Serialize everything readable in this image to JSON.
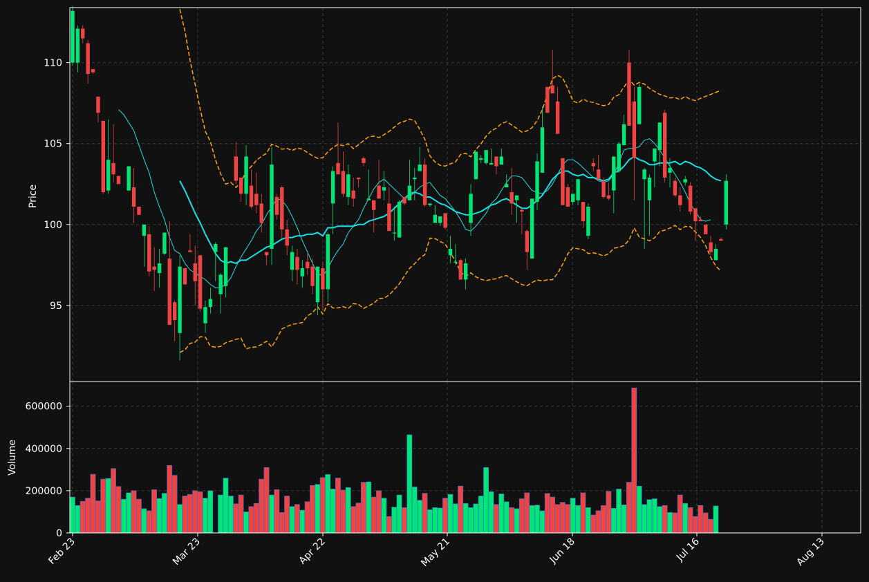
{
  "chart_data": [
    {
      "type": "candlestick",
      "ylabel": "Price",
      "ylim": [
        90.3,
        113.4
      ],
      "yticks": [
        95,
        100,
        105,
        110
      ],
      "xticks": [
        "Feb 23",
        "Mar 23",
        "Apr 22",
        "May 21",
        "Jun 18",
        "Jul 16",
        "Aug 13"
      ],
      "grid": true,
      "colors": {
        "up": "#00e676",
        "down": "#ef4444",
        "ma_fast": "#18dfe5",
        "ma_slow": "#18dfe5",
        "bands": "#ffa500",
        "background": "#111111",
        "grid": "#3a3a3a"
      },
      "ohlc": [
        [
          110,
          113.5,
          109.8,
          113.2
        ],
        [
          110,
          112.3,
          109.4,
          112.1
        ],
        [
          112.1,
          112.3,
          111.2,
          111.5
        ],
        [
          111.2,
          111.4,
          108.7,
          109.3
        ],
        [
          109.6,
          109.5,
          109.3,
          109.4
        ],
        [
          107.9,
          106.6,
          106.3,
          106.9
        ],
        [
          106.4,
          105.2,
          101.9,
          102
        ],
        [
          102.1,
          106.5,
          101.9,
          104
        ],
        [
          103.8,
          106.2,
          102.6,
          103.1
        ],
        [
          103,
          102.5,
          102.5,
          102.5
        ],
        [
          null,
          null,
          null,
          null
        ],
        [
          102.1,
          102.2,
          102.5,
          103.6
        ],
        [
          102.3,
          103.5,
          100.1,
          101.1
        ],
        [
          101.1,
          100.8,
          101.3,
          100.6
        ],
        [
          99.3,
          99.5,
          97.4,
          100
        ],
        [
          99.4,
          99.9,
          96.8,
          97.1
        ],
        [
          97.4,
          98.6,
          95.9,
          97.2
        ],
        [
          97,
          98.5,
          96.1,
          97.6
        ],
        [
          98.2,
          99.5,
          98.1,
          99.5
        ],
        [
          97.9,
          100.2,
          93.9,
          93.8
        ],
        [
          95.2,
          95.3,
          92.8,
          94.1
        ],
        [
          93.3,
          98.1,
          91.6,
          97.4
        ],
        [
          97.3,
          96.5,
          96.4,
          96.3
        ],
        [
          98.4,
          99.4,
          98.3,
          98.3
        ],
        [
          97.6,
          98.7,
          95,
          96.5
        ],
        [
          98.1,
          95.8,
          94.6,
          94.8
        ],
        [
          93.9,
          95.3,
          93.3,
          94.9
        ],
        [
          94.9,
          96.1,
          94.5,
          95.4
        ],
        [
          98.3,
          98.9,
          96.5,
          98.8
        ],
        [
          95.7,
          97,
          94.5,
          96.9
        ],
        [
          96.2,
          97.1,
          95.5,
          98.6
        ],
        [
          null,
          null,
          null,
          null
        ],
        [
          104.2,
          105.1,
          102.5,
          102.7
        ],
        [
          102.9,
          102.5,
          101.4,
          101.9
        ],
        [
          101.9,
          104.9,
          101.2,
          104.2
        ],
        [
          102.4,
          103.4,
          101,
          101.1
        ],
        [
          101.9,
          103.2,
          100.7,
          101.2
        ],
        [
          101.3,
          101.9,
          99.5,
          100.1
        ],
        [
          98.3,
          98.2,
          97.5,
          98.1
        ],
        [
          98.5,
          104.8,
          97.5,
          103.7
        ],
        [
          101.7,
          101.9,
          100.3,
          100.6
        ],
        [
          102.3,
          102.4,
          99.2,
          99.7
        ],
        [
          99.7,
          100.3,
          98.1,
          98.7
        ],
        [
          97.2,
          98.7,
          96.5,
          98.3
        ],
        [
          98,
          98.5,
          96.3,
          97.2
        ],
        [
          96.8,
          97.8,
          96.1,
          97.3
        ],
        [
          97.7,
          98.2,
          96.9,
          97.3
        ],
        [
          97.4,
          97.9,
          95.7,
          96.2
        ],
        [
          95.2,
          97.3,
          94.4,
          97.4
        ],
        [
          97.3,
          97.7,
          94.7,
          96
        ],
        [
          96,
          99.5,
          95.2,
          99.4
        ],
        [
          101.3,
          103.6,
          99.4,
          103.3
        ],
        [
          103.8,
          106.3,
          103.4,
          103.1
        ],
        [
          103.3,
          104.5,
          101.7,
          101.9
        ],
        [
          101.7,
          103.7,
          101.2,
          103.1
        ],
        [
          102.1,
          102.9,
          101.1,
          101.6
        ],
        [
          102.9,
          102.6,
          102.3,
          102.8
        ],
        [
          104.1,
          104.2,
          103.6,
          103.8
        ],
        [
          101.5,
          103.4,
          101.7,
          101.6
        ],
        [
          101.5,
          101.5,
          99.5,
          100.9
        ],
        [
          102.4,
          104,
          102.1,
          101.6
        ],
        [
          102.1,
          103.3,
          101.5,
          102.3
        ],
        [
          101.3,
          102.3,
          99.9,
          99.6
        ],
        [
          99.5,
          101.1,
          99,
          99.5
        ],
        [
          99.2,
          101.5,
          99.6,
          101.4
        ],
        [
          101.7,
          101.3,
          101.2,
          101.3
        ],
        [
          101.5,
          104,
          102,
          102.4
        ],
        [
          102.8,
          103.5,
          101.5,
          102.9
        ],
        [
          103.3,
          104.8,
          103.4,
          103.7
        ],
        [
          103.7,
          104.1,
          101.1,
          101.2
        ],
        [
          101.2,
          101.3,
          101.1,
          101.3
        ],
        [
          100.1,
          101.2,
          100.4,
          100.6
        ],
        [
          100.1,
          100.5,
          99.9,
          100.5
        ],
        [
          100.7,
          99.7,
          99.7,
          99.8
        ],
        [
          98.1,
          99.3,
          97.6,
          98.5
        ],
        [
          97.7,
          98.8,
          97.5,
          97.7
        ],
        [
          97.8,
          97.9,
          96.6,
          96.6
        ],
        [
          96.6,
          97.9,
          96,
          97.6
        ],
        [
          100.1,
          102.5,
          99.3,
          101.9
        ],
        [
          102.8,
          104.5,
          102.9,
          104.5
        ],
        [
          104,
          104.3,
          103.8,
          104.1
        ],
        [
          103.8,
          104.1,
          103.7,
          104.6
        ],
        [
          103.7,
          104.7,
          103.7,
          103.8
        ],
        [
          104.2,
          104.1,
          103.1,
          103.6
        ],
        [
          103.7,
          104.7,
          103.8,
          104.2
        ],
        [
          102.3,
          103.1,
          102.3,
          102.5
        ],
        [
          102,
          103.5,
          100.6,
          101.3
        ],
        [
          101.5,
          101.8,
          100.1,
          101.8
        ],
        [
          100.9,
          101.1,
          99.4,
          100.8
        ],
        [
          99.6,
          99.7,
          97.2,
          98.3
        ],
        [
          97.9,
          101.4,
          98.1,
          101.6
        ],
        [
          101.4,
          104.4,
          100.9,
          103.9
        ],
        [
          103.2,
          107.3,
          103.2,
          106
        ],
        [
          108.5,
          108.4,
          106.9,
          106.9
        ],
        [
          108.6,
          110.8,
          108.4,
          108.1
        ],
        [
          107.6,
          108.5,
          105.6,
          105.6
        ],
        [
          104.1,
          103.8,
          101.2,
          101.2
        ],
        [
          102.3,
          102.5,
          101.7,
          101.1
        ],
        [
          101.4,
          101.8,
          101.2,
          101.9
        ],
        [
          101.5,
          102.6,
          101.2,
          102.8
        ],
        [
          101.4,
          101.3,
          99.8,
          100.2
        ],
        [
          99.3,
          101.3,
          99.1,
          101.1
        ],
        [
          103.8,
          104.1,
          103.3,
          103.6
        ],
        [
          103.4,
          104.3,
          102.7,
          102.8
        ],
        [
          102.7,
          102.9,
          101.6,
          101.7
        ],
        [
          101.8,
          102.6,
          101.5,
          101.6
        ],
        [
          102.1,
          104.1,
          100.7,
          104.2
        ],
        [
          103.3,
          105.1,
          103.2,
          105
        ],
        [
          104.9,
          106.8,
          104.9,
          106.2
        ],
        [
          110,
          110.8,
          109.1,
          106.1
        ],
        [
          107.6,
          108.5,
          101.5,
          104.1
        ],
        [
          106.2,
          108.7,
          106.5,
          108.5
        ],
        [
          102.8,
          103.5,
          98.5,
          103.4
        ],
        [
          101.5,
          103.1,
          99.3,
          102.9
        ],
        [
          103.9,
          104.6,
          102.3,
          104.7
        ],
        [
          104.6,
          105.4,
          103.6,
          106.3
        ],
        [
          106.9,
          107.1,
          102.6,
          102.9
        ],
        [
          103.2,
          104.1,
          102.3,
          103.5
        ],
        [
          102.7,
          102.9,
          101.7,
          101.8
        ],
        [
          101.8,
          102.3,
          100.8,
          101.2
        ],
        [
          102.6,
          103,
          102.4,
          102.8
        ],
        [
          102.4,
          102.6,
          100.6,
          100.8
        ],
        [
          101,
          100.2,
          99,
          100.2
        ],
        [
          100.3,
          100.5,
          100.3,
          100.2
        ],
        [
          100,
          99.2,
          99.6,
          99.4
        ],
        [
          98.9,
          99.3,
          98.1,
          98.3
        ],
        [
          97.8,
          98.8,
          97.8,
          98.5
        ],
        [
          99.1,
          99.2,
          99,
          99
        ],
        [
          100,
          103.1,
          99.7,
          102.7
        ]
      ],
      "ma_fast": [
        null,
        null,
        null,
        null,
        null,
        null,
        null,
        null,
        null,
        107.1,
        106.8,
        106.3,
        105.8,
        104.9,
        104,
        103.2,
        102,
        101.1,
        100.3,
        99.2,
        98.4,
        98.2,
        97.6,
        97.2,
        97,
        96.8,
        96.6,
        96.3,
        96.1,
        96.1,
        96.3,
        96.7,
        97.4,
        98,
        98.5,
        99,
        99.6,
        100,
        100.6,
        101.1,
        101.6,
        101.5,
        101.1,
        100.5,
        99.8,
        99,
        98.3,
        97.6,
        97,
        96.8,
        97.3,
        97.9,
        98.4,
        98.8,
        99.5,
        99.9,
        100.3,
        101,
        101.6,
        102.2,
        102.6,
        102.8,
        102.5,
        102.2,
        101.9,
        101.6,
        101.7,
        102,
        102.3,
        102.5,
        102.6,
        102.2,
        101.8,
        101.6,
        101.2,
        100.8,
        100.3,
        99.7,
        99.6,
        99.9,
        100.3,
        100.7,
        101.3,
        101.6,
        102.1,
        102.6,
        103,
        103,
        102.9,
        102.5,
        102.1,
        102,
        101.9,
        102.1,
        102.5,
        103.1,
        103.7,
        104,
        104,
        103.8,
        103.5,
        103.2,
        102.9,
        102.7,
        102.6,
        102.7,
        103.1,
        103.8,
        104.6,
        104.7,
        104.7,
        104.8,
        105.2,
        105.3,
        105,
        104.6,
        104.1,
        103.6,
        103.1,
        102.6,
        102,
        101.3,
        100.8,
        100.3,
        100.2,
        100.3
      ],
      "ma_slow": [
        null,
        null,
        null,
        null,
        null,
        null,
        null,
        null,
        null,
        null,
        null,
        null,
        null,
        null,
        null,
        null,
        null,
        null,
        null,
        null,
        null,
        102.7,
        102.1,
        101.4,
        100.7,
        100.1,
        99.4,
        98.8,
        98.2,
        97.8,
        97.6,
        97.7,
        97.6,
        97.8,
        97.8,
        98,
        98.2,
        98.4,
        98.6,
        98.7,
        98.9,
        99.1,
        99.2,
        99.2,
        99.3,
        99.3,
        99.4,
        99.4,
        99.5,
        99.3,
        99.8,
        99.8,
        99.9,
        99.9,
        99.9,
        99.9,
        100,
        100,
        100.2,
        100.3,
        100.4,
        100.5,
        100.7,
        101,
        101.3,
        101.6,
        101.9,
        102,
        101.9,
        101.7,
        101.7,
        101.5,
        101.3,
        101.2,
        101,
        100.8,
        100.7,
        100.6,
        100.6,
        100.7,
        100.8,
        101,
        101.2,
        101.3,
        101.5,
        101.6,
        101.4,
        101.2,
        101,
        101,
        101.2,
        101.5,
        101.8,
        102.3,
        102.8,
        103.1,
        103.3,
        103.3,
        103.1,
        103,
        103.1,
        102.9,
        102.9,
        102.8,
        102.7,
        102.8,
        103.2,
        103.3,
        103.6,
        104,
        104.2,
        104,
        103.9,
        103.7,
        103.7,
        103.8,
        103.8,
        103.8,
        103.9,
        103.7,
        103.9,
        103.8,
        103.6,
        103.5,
        103.3,
        103,
        102.8,
        102.7
      ]
    },
    {
      "type": "bar",
      "ylabel": "Volume",
      "ylim": [
        0,
        717000
      ],
      "yticks": [
        0,
        200000,
        400000,
        600000
      ],
      "volume": [
        170000,
        130000,
        150000,
        165000,
        278000,
        152000,
        255000,
        258000,
        305000,
        220000,
        160000,
        190000,
        200000,
        160000,
        115000,
        105000,
        205000,
        163000,
        188000,
        320000,
        273000,
        135000,
        175000,
        183000,
        200000,
        195000,
        165000,
        200000,
        null,
        180000,
        260000,
        175000,
        138000,
        180000,
        100000,
        125000,
        140000,
        255000,
        310000,
        180000,
        205000,
        97000,
        175000,
        125000,
        135000,
        108000,
        148000,
        225000,
        230000,
        262000,
        277000,
        208000,
        260000,
        203000,
        215000,
        125000,
        142000,
        240000,
        242000,
        170000,
        200000,
        165000,
        78000,
        122000,
        180000,
        120000,
        465000,
        218000,
        155000,
        188000,
        110000,
        120000,
        118000,
        165000,
        183000,
        138000,
        222000,
        140000,
        120000,
        138000,
        175000,
        310000,
        195000,
        135000,
        185000,
        148000,
        120000,
        115000,
        162000,
        190000,
        130000,
        132000,
        105000,
        187000,
        170000,
        135000,
        145000,
        135000,
        165000,
        130000,
        190000,
        120000,
        85000,
        105000,
        130000,
        197000,
        117000,
        208000,
        133000,
        240000,
        687000,
        222000,
        135000,
        158000,
        162000,
        125000,
        130000,
        97000,
        95000,
        180000,
        140000,
        120000,
        78000,
        130000,
        95000,
        65000,
        128000
      ]
    }
  ]
}
